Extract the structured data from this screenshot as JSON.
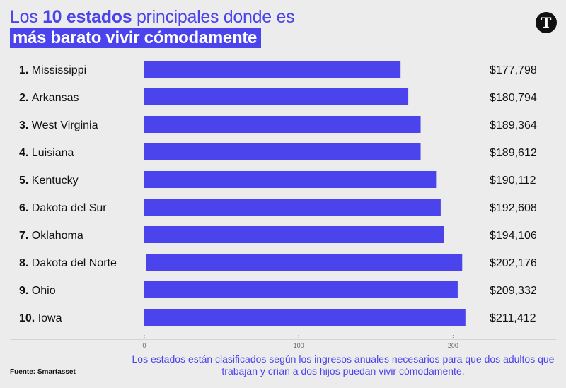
{
  "title": {
    "part1": "Los ",
    "bold": "10 estados",
    "part2": " principales donde es",
    "line2": "más barato vivir cómodamente"
  },
  "logo_letter": "T",
  "footnote": "Los estados están clasificados según los ingresos anuales necesarios para que dos adultos que trabajan y crían a dos hijos puedan vivir cómodamente.",
  "source": "Fuente: Smartasset",
  "colors": {
    "accent": "#4b44ec",
    "background": "#ececec",
    "text": "#111111"
  },
  "chart_data": {
    "type": "bar",
    "orientation": "horizontal",
    "title": "Los 10 estados principales donde es más barato vivir cómodamente",
    "ranks": [
      "1.",
      "2.",
      "3.",
      "4.",
      "5.",
      "6.",
      "7.",
      "8.",
      "9.",
      "10."
    ],
    "categories": [
      "Mississippi",
      "Arkansas",
      "West Virginia",
      "Luisiana",
      "Kentucky",
      "Dakota del Sur",
      "Oklahoma",
      "Dakota del Norte",
      "Ohio",
      "Iowa"
    ],
    "values": [
      177798,
      180794,
      189364,
      189612,
      190112,
      192608,
      194106,
      202176,
      209332,
      211412
    ],
    "value_labels": [
      "$177,798",
      "$180,794",
      "$189,364",
      "$189,612",
      "$190,112",
      "$192,608",
      "$194,106",
      "$202,176",
      "$209,332",
      "$211,412"
    ],
    "bar_lengths": [
      166,
      171,
      179,
      179,
      189,
      192,
      194,
      205,
      203,
      208
    ],
    "xticks": [
      0,
      100,
      200
    ],
    "xlim": [
      0,
      209
    ],
    "xlabel": "",
    "ylabel": ""
  }
}
